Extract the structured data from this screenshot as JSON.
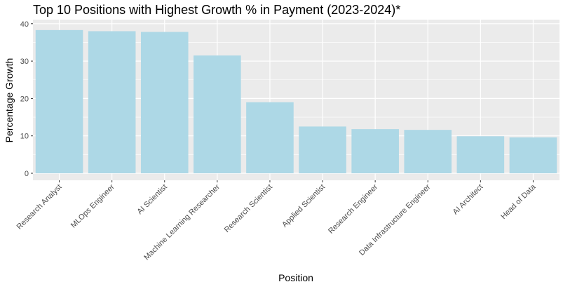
{
  "chart_data": {
    "type": "bar",
    "title": "Top 10 Positions with Highest Growth % in Payment (2023-2024)*",
    "xlabel": "Position",
    "ylabel": "Percentage Growth",
    "categories": [
      "Research Analyst",
      "MLOps Engineer",
      "AI Scientist",
      "Machine Learning Researcher",
      "Research Scientist",
      "Applied Scientist",
      "Research Engineer",
      "Data Infrastructure Engineer",
      "AI Architect",
      "Head of Data"
    ],
    "values": [
      38.3,
      38.0,
      37.8,
      31.5,
      19.0,
      12.5,
      11.8,
      11.6,
      9.9,
      9.6
    ],
    "ylim": [
      0,
      40
    ],
    "yticks": [
      "0",
      "10",
      "20",
      "30",
      "40"
    ],
    "grid": true,
    "colors": {
      "bar": "#add8e6",
      "panel": "#ebebeb",
      "grid": "#ffffff"
    }
  }
}
